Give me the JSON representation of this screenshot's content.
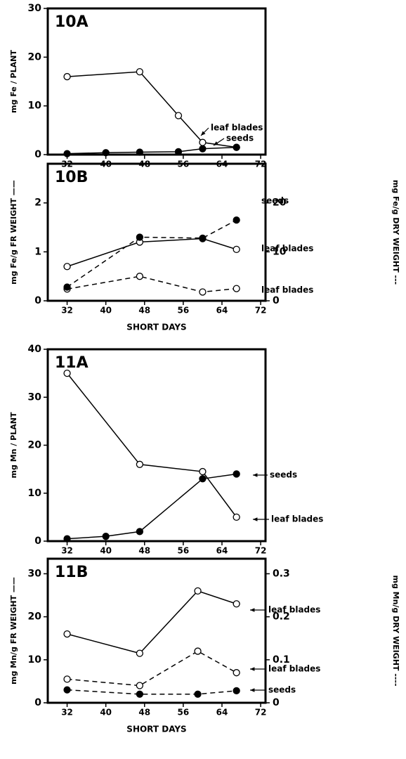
{
  "chart_data": [
    {
      "type": "line",
      "panel_label": "10A",
      "ylabel": "mg Fe / PLANT",
      "xlim": [
        28,
        73
      ],
      "xticks": [
        32,
        40,
        48,
        56,
        64,
        72
      ],
      "ylim": [
        0,
        30
      ],
      "yticks": [
        0,
        10,
        20,
        30
      ],
      "series": [
        {
          "name": "leaf blades",
          "color": "#000000",
          "marker": "open",
          "dashed": false,
          "x": [
            32,
            47,
            55,
            60,
            67
          ],
          "values": [
            16,
            17,
            8,
            2.5,
            1.5
          ]
        },
        {
          "name": "seeds",
          "color": "#000000",
          "marker": "filled",
          "dashed": false,
          "x": [
            32,
            40,
            47,
            55,
            60,
            67
          ],
          "values": [
            0.2,
            0.4,
            0.5,
            0.6,
            1.2,
            1.5
          ]
        }
      ]
    },
    {
      "type": "line",
      "panel_label": "10B",
      "ylabel": "mg Fe/g  FR WEIGHT ——",
      "y2label": "mg Fe/g  DRY WEIGHT ---",
      "xlabel": "SHORT DAYS",
      "xlim": [
        28,
        73
      ],
      "xticks": [
        32,
        40,
        48,
        56,
        64,
        72
      ],
      "ylim": [
        0,
        2.8
      ],
      "yticks": [
        0,
        1,
        2
      ],
      "y2lim": [
        0,
        28
      ],
      "y2ticks": [
        0,
        10,
        20
      ],
      "series": [
        {
          "name": "leaf blades",
          "color": "#000000",
          "marker": "open",
          "dashed": false,
          "x": [
            32,
            47,
            60,
            67
          ],
          "values": [
            0.7,
            1.2,
            1.27,
            1.05
          ]
        },
        {
          "name": "leaf blades",
          "color": "#000000",
          "marker": "open",
          "dashed": true,
          "axis": "y2",
          "x": [
            32,
            47,
            60,
            67
          ],
          "values": [
            2.4,
            5,
            1.8,
            2.5
          ]
        },
        {
          "name": "seeds",
          "color": "#000000",
          "marker": "filled",
          "dashed": true,
          "axis": "y2",
          "x": [
            32,
            47,
            60,
            67
          ],
          "values": [
            2.8,
            13,
            12.8,
            16.5
          ]
        }
      ]
    },
    {
      "type": "line",
      "panel_label": "11A",
      "ylabel": "mg Mn / PLANT",
      "xlim": [
        28,
        73
      ],
      "xticks": [
        32,
        40,
        48,
        56,
        64,
        72
      ],
      "ylim": [
        0,
        40
      ],
      "yticks": [
        0,
        10,
        20,
        30,
        40
      ],
      "series": [
        {
          "name": "seeds",
          "color": "#000000",
          "marker": "filled",
          "dashed": false,
          "x": [
            32,
            40,
            47,
            60,
            67
          ],
          "values": [
            0.5,
            1,
            2,
            13,
            14
          ]
        },
        {
          "name": "leaf blades",
          "color": "#000000",
          "marker": "open",
          "dashed": false,
          "x": [
            32,
            47,
            60,
            67
          ],
          "values": [
            35,
            16,
            14.5,
            5
          ]
        }
      ]
    },
    {
      "type": "line",
      "panel_label": "11B",
      "ylabel": "mg Mn/g  FR WEIGHT ——",
      "y2label": "mg Mn/g  DRY WEIGHT ----",
      "xlabel": "SHORT DAYS",
      "xlim": [
        28,
        73
      ],
      "xticks": [
        32,
        40,
        48,
        56,
        64,
        72
      ],
      "ylim": [
        0,
        33.5
      ],
      "yticks": [
        0,
        10,
        20,
        30
      ],
      "y2lim": [
        0,
        0.335
      ],
      "y2ticks": [
        0,
        0.1,
        0.2,
        0.3
      ],
      "series": [
        {
          "name": "leaf blades",
          "color": "#000000",
          "marker": "open",
          "dashed": false,
          "x": [
            32,
            47,
            59,
            67
          ],
          "values": [
            16,
            11.5,
            26,
            23
          ]
        },
        {
          "name": "leaf blades",
          "color": "#000000",
          "marker": "open",
          "dashed": true,
          "axis": "y2",
          "x": [
            32,
            47,
            59,
            67
          ],
          "values": [
            0.055,
            0.04,
            0.12,
            0.07
          ]
        },
        {
          "name": "seeds",
          "color": "#000000",
          "marker": "filled",
          "dashed": true,
          "axis": "y2",
          "x": [
            32,
            47,
            59,
            67
          ],
          "values": [
            0.03,
            0.02,
            0.02,
            0.028
          ]
        }
      ]
    }
  ]
}
